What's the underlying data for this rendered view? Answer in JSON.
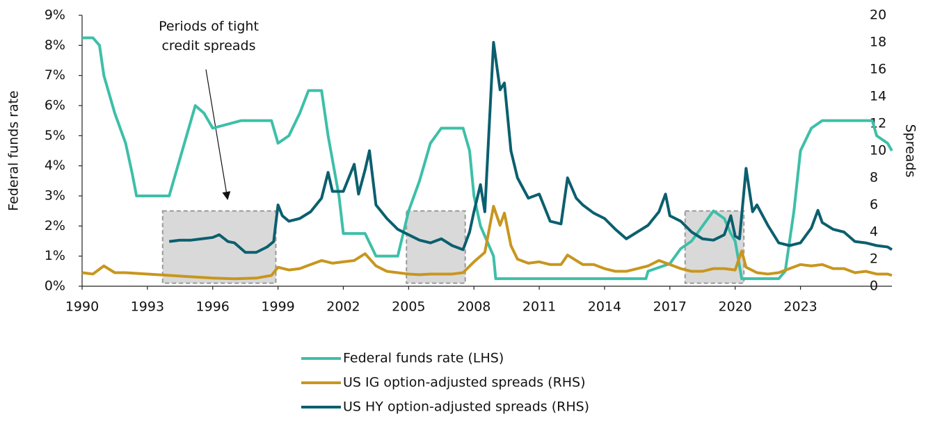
{
  "chart_data": {
    "type": "line",
    "y_label": "Federal funds rate",
    "y2_label": "Spreads",
    "annotation": [
      "Periods of tight",
      "credit spreads"
    ],
    "xlim": [
      1990,
      2027.2
    ],
    "xticks": [
      1990,
      1993,
      1996,
      1999,
      2002,
      2005,
      2008,
      2011,
      2014,
      2017,
      2020,
      2023
    ],
    "ylim": [
      0,
      9
    ],
    "yticks": [
      {
        "value": 0,
        "label": "0%"
      },
      {
        "value": 1,
        "label": "1%"
      },
      {
        "value": 2,
        "label": "2%"
      },
      {
        "value": 3,
        "label": "3%"
      },
      {
        "value": 4,
        "label": "4%"
      },
      {
        "value": 5,
        "label": "5%"
      },
      {
        "value": 6,
        "label": "6%"
      },
      {
        "value": 7,
        "label": "7%"
      },
      {
        "value": 8,
        "label": "8%"
      },
      {
        "value": 9,
        "label": "9%"
      }
    ],
    "y2lim": [
      0,
      20
    ],
    "y2ticks": [
      0,
      2,
      4,
      6,
      8,
      10,
      12,
      14,
      16,
      18,
      20
    ],
    "shaded_periods": [
      [
        1993.7,
        1998.9
      ],
      [
        2004.9,
        2007.6
      ],
      [
        2017.7,
        2020.4
      ]
    ],
    "shaded_yrange": [
      0.1,
      2.5
    ],
    "shaded_color": "#d9d9d9",
    "series": [
      {
        "name": "Federal funds rate (LHS)",
        "color": "#3dbfa8",
        "axis": "y",
        "x": [
          1990,
          1990.5,
          1990.8,
          1991,
          1991.5,
          1992,
          1992.3,
          1992.5,
          1994,
          1994.5,
          1995,
          1995.2,
          1995.6,
          1996,
          1997.3,
          1998.7,
          1999,
          1999.5,
          2000,
          2000.4,
          2001,
          2001.3,
          2001.8,
          2002,
          2003,
          2003.5,
          2004.5,
          2005,
          2005.5,
          2006,
          2006.5,
          2007.5,
          2007.8,
          2008,
          2008.3,
          2008.9,
          2009,
          2015.9,
          2016,
          2017,
          2017.5,
          2018,
          2018.5,
          2019,
          2019.5,
          2019.8,
          2020,
          2020.3,
          2022,
          2022.3,
          2022.7,
          2023,
          2023.5,
          2024,
          2026.3,
          2026.5,
          2027,
          2027.2
        ],
        "values": [
          8.25,
          8.25,
          8.0,
          7.0,
          5.75,
          4.75,
          3.75,
          3.0,
          3.0,
          4.25,
          5.5,
          6.0,
          5.75,
          5.25,
          5.5,
          5.5,
          4.75,
          5.0,
          5.75,
          6.5,
          6.5,
          5.0,
          3.0,
          1.75,
          1.75,
          1.0,
          1.0,
          2.5,
          3.5,
          4.75,
          5.25,
          5.25,
          4.5,
          3.0,
          2.0,
          1.0,
          0.25,
          0.25,
          0.5,
          0.75,
          1.25,
          1.5,
          2.0,
          2.5,
          2.25,
          1.75,
          1.5,
          0.25,
          0.25,
          0.5,
          2.5,
          4.5,
          5.25,
          5.5,
          5.5,
          5.0,
          4.75,
          4.5
        ]
      },
      {
        "name": "US IG option-adjusted spreads (RHS)",
        "color": "#c8961e",
        "axis": "y2",
        "x": [
          1990,
          1990.5,
          1991,
          1991.5,
          1992,
          1993,
          1994,
          1995,
          1996,
          1997,
          1998,
          1998.7,
          1999,
          1999.5,
          2000,
          2000.5,
          2001,
          2001.5,
          2002,
          2002.5,
          2003,
          2003.5,
          2004,
          2004.5,
          2005,
          2005.5,
          2006,
          2006.5,
          2007,
          2007.5,
          2008,
          2008.5,
          2008.9,
          2009.2,
          2009.4,
          2009.7,
          2010,
          2010.5,
          2011,
          2011.5,
          2012,
          2012.3,
          2013,
          2013.5,
          2014,
          2014.5,
          2015,
          2015.5,
          2016,
          2016.5,
          2017,
          2017.5,
          2018,
          2018.5,
          2019,
          2019.5,
          2020,
          2020.3,
          2020.5,
          2021,
          2021.5,
          2022,
          2022.5,
          2023,
          2023.5,
          2024,
          2024.5,
          2025,
          2025.5,
          2026,
          2026.5,
          2027,
          2027.2
        ],
        "values": [
          1.0,
          0.9,
          1.5,
          1.0,
          1.0,
          0.9,
          0.8,
          0.7,
          0.6,
          0.55,
          0.6,
          0.8,
          1.4,
          1.2,
          1.3,
          1.6,
          1.9,
          1.7,
          1.8,
          1.9,
          2.4,
          1.5,
          1.1,
          1.0,
          0.9,
          0.85,
          0.9,
          0.9,
          0.9,
          1.0,
          1.8,
          2.5,
          5.9,
          4.5,
          5.4,
          3.0,
          2.0,
          1.7,
          1.8,
          1.6,
          1.6,
          2.3,
          1.6,
          1.6,
          1.3,
          1.1,
          1.1,
          1.3,
          1.5,
          1.9,
          1.6,
          1.3,
          1.1,
          1.1,
          1.3,
          1.3,
          1.2,
          2.6,
          1.4,
          1.0,
          0.9,
          1.0,
          1.3,
          1.6,
          1.5,
          1.6,
          1.3,
          1.3,
          1.0,
          1.1,
          0.9,
          0.9,
          0.8
        ]
      },
      {
        "name": "US HY option-adjusted spreads (RHS)",
        "color": "#0b5f6e",
        "axis": "y2",
        "x": [
          1994,
          1994.5,
          1995,
          1995.5,
          1996,
          1996.3,
          1996.7,
          1997,
          1997.5,
          1998,
          1998.5,
          1998.8,
          1999,
          1999.2,
          1999.5,
          2000,
          2000.5,
          2001,
          2001.3,
          2001.5,
          2002,
          2002.5,
          2002.7,
          2003,
          2003.2,
          2003.5,
          2004,
          2004.5,
          2005,
          2005.5,
          2006,
          2006.5,
          2007,
          2007.5,
          2007.8,
          2008,
          2008.3,
          2008.5,
          2008.9,
          2009.2,
          2009.4,
          2009.7,
          2010,
          2010.5,
          2011,
          2011.5,
          2012,
          2012.3,
          2012.7,
          2013,
          2013.5,
          2014,
          2014.5,
          2015,
          2015.5,
          2016,
          2016.5,
          2016.8,
          2017,
          2017.5,
          2018,
          2018.5,
          2019,
          2019.5,
          2019.8,
          2020,
          2020.2,
          2020.5,
          2020.8,
          2021,
          2021.5,
          2022,
          2022.5,
          2023,
          2023.5,
          2023.8,
          2024,
          2024.5,
          2025,
          2025.5,
          2026,
          2026.5,
          2027,
          2027.2
        ],
        "values": [
          3.3,
          3.4,
          3.4,
          3.5,
          3.6,
          3.8,
          3.3,
          3.2,
          2.5,
          2.5,
          2.9,
          3.3,
          6.0,
          5.2,
          4.8,
          5.0,
          5.5,
          6.5,
          8.4,
          7.0,
          7.0,
          9.0,
          6.8,
          8.6,
          10.0,
          6.0,
          5.0,
          4.2,
          3.8,
          3.4,
          3.2,
          3.5,
          3.0,
          2.7,
          4.0,
          5.5,
          7.5,
          5.5,
          18.0,
          14.5,
          15.0,
          10.0,
          8.0,
          6.5,
          6.8,
          4.8,
          4.6,
          8.0,
          6.5,
          6.0,
          5.4,
          5.0,
          4.2,
          3.5,
          4.0,
          4.5,
          5.5,
          6.8,
          5.2,
          4.8,
          4.0,
          3.5,
          3.4,
          3.8,
          5.2,
          3.7,
          3.5,
          8.7,
          5.5,
          6.0,
          4.5,
          3.2,
          3.0,
          3.2,
          4.3,
          5.6,
          4.7,
          4.2,
          4.0,
          3.3,
          3.2,
          3.0,
          2.9,
          2.7
        ]
      }
    ]
  }
}
